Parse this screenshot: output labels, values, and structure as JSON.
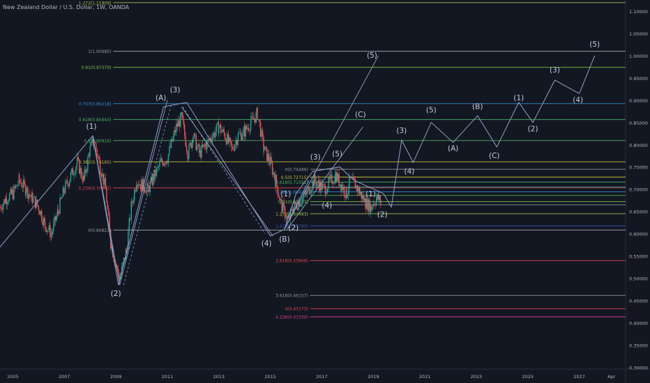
{
  "header": {
    "title": "New Zealand Dollar / U.S. Dollar, 1W, OANDA"
  },
  "colors": {
    "background": "#131722",
    "grid": "#1c2030",
    "axis_text": "#b2b5be",
    "up": "#26a69a",
    "down": "#ef5350",
    "wave": "#8fa3c8",
    "label": "#c3cce0"
  },
  "chart_data": {
    "type": "candlestick",
    "x_range": [
      2004.5,
      2028.8
    ],
    "y_range": [
      0.296,
      1.125
    ],
    "x_ticks": [
      {
        "label": "2005",
        "x": 2005
      },
      {
        "label": "2007",
        "x": 2007
      },
      {
        "label": "2009",
        "x": 2009
      },
      {
        "label": "2011",
        "x": 2011
      },
      {
        "label": "2013",
        "x": 2013
      },
      {
        "label": "2015",
        "x": 2015
      },
      {
        "label": "2017",
        "x": 2017
      },
      {
        "label": "2019",
        "x": 2019
      },
      {
        "label": "2021",
        "x": 2021
      },
      {
        "label": "2023",
        "x": 2023
      },
      {
        "label": "2025",
        "x": 2025
      },
      {
        "label": "2027",
        "x": 2027
      },
      {
        "label": "Apr",
        "x": 2028.25
      }
    ],
    "y_ticks": [
      "1.10000",
      "1.05000",
      "1.00000",
      "0.95000",
      "0.90000",
      "0.85000",
      "0.80000",
      "0.75000",
      "0.70000",
      "0.65000",
      "0.60000",
      "0.55000",
      "0.50000",
      "0.45000",
      "0.40000",
      "0.35000",
      "0.30000"
    ],
    "price_path": [
      [
        2004.5,
        0.66
      ],
      [
        2004.75,
        0.68
      ],
      [
        2005.0,
        0.69
      ],
      [
        2005.25,
        0.72
      ],
      [
        2005.5,
        0.7
      ],
      [
        2005.75,
        0.68
      ],
      [
        2006.0,
        0.66
      ],
      [
        2006.25,
        0.62
      ],
      [
        2006.5,
        0.6
      ],
      [
        2006.75,
        0.65
      ],
      [
        2007.0,
        0.7
      ],
      [
        2007.25,
        0.73
      ],
      [
        2007.5,
        0.76
      ],
      [
        2007.75,
        0.72
      ],
      [
        2008.0,
        0.79
      ],
      [
        2008.15,
        0.81
      ],
      [
        2008.4,
        0.75
      ],
      [
        2008.6,
        0.7
      ],
      [
        2008.8,
        0.58
      ],
      [
        2009.0,
        0.53
      ],
      [
        2009.15,
        0.5
      ],
      [
        2009.4,
        0.56
      ],
      [
        2009.6,
        0.66
      ],
      [
        2009.8,
        0.72
      ],
      [
        2010.0,
        0.71
      ],
      [
        2010.25,
        0.7
      ],
      [
        2010.5,
        0.73
      ],
      [
        2010.75,
        0.76
      ],
      [
        2011.0,
        0.77
      ],
      [
        2011.15,
        0.8
      ],
      [
        2011.35,
        0.84
      ],
      [
        2011.55,
        0.86
      ],
      [
        2011.8,
        0.78
      ],
      [
        2012.0,
        0.82
      ],
      [
        2012.25,
        0.78
      ],
      [
        2012.5,
        0.8
      ],
      [
        2012.75,
        0.82
      ],
      [
        2013.0,
        0.84
      ],
      [
        2013.25,
        0.82
      ],
      [
        2013.5,
        0.79
      ],
      [
        2013.75,
        0.82
      ],
      [
        2014.0,
        0.83
      ],
      [
        2014.25,
        0.85
      ],
      [
        2014.5,
        0.87
      ],
      [
        2014.75,
        0.79
      ],
      [
        2015.0,
        0.76
      ],
      [
        2015.2,
        0.72
      ],
      [
        2015.45,
        0.66
      ],
      [
        2015.7,
        0.63
      ],
      [
        2015.9,
        0.66
      ],
      [
        2016.1,
        0.67
      ],
      [
        2016.4,
        0.69
      ],
      [
        2016.7,
        0.72
      ],
      [
        2016.9,
        0.71
      ],
      [
        2017.1,
        0.7
      ],
      [
        2017.35,
        0.72
      ],
      [
        2017.55,
        0.73
      ],
      [
        2017.75,
        0.71
      ],
      [
        2017.95,
        0.69
      ],
      [
        2018.1,
        0.72
      ],
      [
        2018.3,
        0.71
      ],
      [
        2018.5,
        0.69
      ],
      [
        2018.7,
        0.67
      ],
      [
        2018.9,
        0.66
      ],
      [
        2019.0,
        0.67
      ],
      [
        2019.15,
        0.68
      ],
      [
        2019.35,
        0.67
      ]
    ],
    "fib_levels": [
      {
        "label": "1.272(1.11909)",
        "value": 1.11909,
        "color": "#9cc94b"
      },
      {
        "label": "1(1.00985)",
        "value": 1.00985,
        "color": "#9598a1"
      },
      {
        "label": "0.91(0.97370)",
        "value": 0.9737,
        "color": "#80c340"
      },
      {
        "label": "0.707(0.89218)",
        "value": 0.89218,
        "color": "#2f8fd6"
      },
      {
        "label": "0.618(0.85643)",
        "value": 0.85643,
        "color": "#47b56c"
      },
      {
        "label": "0.5(0.80926)",
        "value": 0.80926,
        "color": "#4caf50"
      },
      {
        "label": "0.382(0.76165)",
        "value": 0.76165,
        "color": "#c3c33a"
      },
      {
        "label": "0.236(0.70302)",
        "value": 0.70302,
        "color": "#e04848"
      },
      {
        "label": "0(0.60823)",
        "value": 0.60823,
        "color": "#9598a1"
      }
    ],
    "fib_levels_2": [
      {
        "label": "0(0.74489)",
        "value": 0.74489,
        "color": "#9598a1"
      },
      {
        "label": "0.5(0.72715)",
        "value": 0.7273,
        "color": "#c3c33a"
      },
      {
        "label": "0.618(0.71591)",
        "value": 0.716,
        "color": "#47b56c"
      },
      {
        "label": "",
        "value": 0.705,
        "color": "#3aa0a0"
      },
      {
        "label": "0.786(0.69423)",
        "value": 0.6943,
        "color": "#2f8fd6"
      },
      {
        "label": "",
        "value": 0.686,
        "color": "#4caf50"
      },
      {
        "label": "0.91(0.67233)",
        "value": 0.67233,
        "color": "#80c340"
      },
      {
        "label": "",
        "value": 0.665,
        "color": "#9598a1"
      },
      {
        "label": "1.272(0.64483)",
        "value": 0.64483,
        "color": "#9cc94b"
      },
      {
        "label": "1.618(0.61780)",
        "value": 0.6178,
        "color": "#3f51b5"
      },
      {
        "label": "2.618(0.53969)",
        "value": 0.53969,
        "color": "#e04848"
      },
      {
        "label": "3.618(0.46157)",
        "value": 0.46157,
        "color": "#9598a1"
      },
      {
        "label": "4(0.43173)",
        "value": 0.43173,
        "color": "#e04848"
      },
      {
        "label": "4.236(0.41330)",
        "value": 0.4133,
        "color": "#d33f9a"
      }
    ],
    "wave_path": [
      [
        2004.5,
        0.57
      ],
      [
        2008.1,
        0.82
      ],
      [
        2009.1,
        0.485
      ],
      [
        2010.85,
        0.885
      ],
      [
        2011.75,
        0.895
      ],
      [
        2015.0,
        0.595
      ],
      [
        2015.55,
        0.61
      ],
      [
        2016.0,
        0.69
      ],
      [
        2016.65,
        0.74
      ],
      [
        2017.7,
        0.75
      ],
      [
        2018.25,
        0.72
      ],
      [
        2019.4,
        0.69
      ],
      [
        2019.7,
        0.66
      ],
      [
        2020.1,
        0.81
      ],
      [
        2020.55,
        0.76
      ],
      [
        2021.25,
        0.85
      ],
      [
        2022.1,
        0.805
      ],
      [
        2023.05,
        0.865
      ],
      [
        2023.8,
        0.795
      ],
      [
        2024.65,
        0.895
      ],
      [
        2025.2,
        0.85
      ],
      [
        2026.05,
        0.945
      ],
      [
        2027.0,
        0.915
      ],
      [
        2027.6,
        1.0
      ]
    ],
    "wave_lines": [
      [
        [
          2008.1,
          0.82
        ],
        [
          2009.15,
          0.485
        ]
      ],
      [
        [
          2011.55,
          0.885
        ],
        [
          2015.1,
          0.595
        ]
      ],
      [
        [
          2009.15,
          0.485
        ],
        [
          2011.0,
          0.9
        ]
      ],
      [
        [
          2015.55,
          0.61
        ],
        [
          2019.2,
          1.0
        ]
      ],
      [
        [
          2015.65,
          0.61
        ],
        [
          2018.6,
          0.84
        ]
      ],
      [
        [
          2015.55,
          0.61
        ],
        [
          2016.5,
          0.72
        ]
      ]
    ],
    "wave_dashed": [
      [
        [
          2009.3,
          0.485
        ],
        [
          2011.15,
          0.89
        ]
      ],
      [
        [
          2011.6,
          0.885
        ],
        [
          2014.8,
          0.6
        ]
      ]
    ],
    "wave_labels": [
      {
        "text": "(1)",
        "x": 2008.05,
        "y": 0.836
      },
      {
        "text": "(2)",
        "x": 2009.0,
        "y": 0.46
      },
      {
        "text": "(A)",
        "x": 2010.75,
        "y": 0.9
      },
      {
        "text": "(3)",
        "x": 2011.3,
        "y": 0.918
      },
      {
        "text": "(4)",
        "x": 2014.85,
        "y": 0.573
      },
      {
        "text": "(B)",
        "x": 2015.55,
        "y": 0.582
      },
      {
        "text": "(2)",
        "x": 2015.9,
        "y": 0.608
      },
      {
        "text": "(1)",
        "x": 2015.6,
        "y": 0.684
      },
      {
        "text": "(3)",
        "x": 2016.75,
        "y": 0.767
      },
      {
        "text": "(4)",
        "x": 2017.2,
        "y": 0.658
      },
      {
        "text": "(5)",
        "x": 2017.6,
        "y": 0.774
      },
      {
        "text": "(C)",
        "x": 2018.5,
        "y": 0.862
      },
      {
        "text": "(5)",
        "x": 2018.95,
        "y": 0.995
      },
      {
        "text": "(1)",
        "x": 2018.9,
        "y": 0.684
      },
      {
        "text": "(2)",
        "x": 2019.35,
        "y": 0.638
      },
      {
        "text": "(3)",
        "x": 2020.1,
        "y": 0.826
      },
      {
        "text": "(4)",
        "x": 2020.4,
        "y": 0.735
      },
      {
        "text": "(5)",
        "x": 2021.25,
        "y": 0.872
      },
      {
        "text": "(A)",
        "x": 2022.1,
        "y": 0.786
      },
      {
        "text": "(B)",
        "x": 2023.05,
        "y": 0.88
      },
      {
        "text": "(C)",
        "x": 2023.7,
        "y": 0.77
      },
      {
        "text": "(1)",
        "x": 2024.65,
        "y": 0.9
      },
      {
        "text": "(2)",
        "x": 2025.2,
        "y": 0.83
      },
      {
        "text": "(3)",
        "x": 2026.05,
        "y": 0.962
      },
      {
        "text": "(4)",
        "x": 2026.95,
        "y": 0.895
      },
      {
        "text": "(5)",
        "x": 2027.6,
        "y": 1.02
      }
    ]
  }
}
